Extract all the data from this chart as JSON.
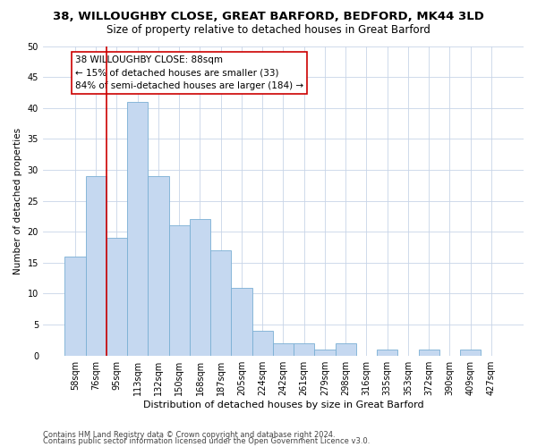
{
  "title1": "38, WILLOUGHBY CLOSE, GREAT BARFORD, BEDFORD, MK44 3LD",
  "title2": "Size of property relative to detached houses in Great Barford",
  "xlabel": "Distribution of detached houses by size in Great Barford",
  "ylabel": "Number of detached properties",
  "categories": [
    "58sqm",
    "76sqm",
    "95sqm",
    "113sqm",
    "132sqm",
    "150sqm",
    "168sqm",
    "187sqm",
    "205sqm",
    "224sqm",
    "242sqm",
    "261sqm",
    "279sqm",
    "298sqm",
    "316sqm",
    "335sqm",
    "353sqm",
    "372sqm",
    "390sqm",
    "409sqm",
    "427sqm"
  ],
  "bar_values": [
    16,
    29,
    19,
    41,
    29,
    21,
    22,
    17,
    11,
    4,
    2,
    2,
    1,
    2,
    0,
    1,
    0,
    1,
    0,
    1,
    0
  ],
  "bar_color": "#c5d8f0",
  "bar_edge_color": "#7aafd4",
  "vline_color": "#cc0000",
  "vline_x": 1.5,
  "annotation_text": "38 WILLOUGHBY CLOSE: 88sqm\n← 15% of detached houses are smaller (33)\n84% of semi-detached houses are larger (184) →",
  "annotation_box_color": "#ffffff",
  "annotation_box_edge_color": "#cc0000",
  "ylim": [
    0,
    50
  ],
  "yticks": [
    0,
    5,
    10,
    15,
    20,
    25,
    30,
    35,
    40,
    45,
    50
  ],
  "footer1": "Contains HM Land Registry data © Crown copyright and database right 2024.",
  "footer2": "Contains public sector information licensed under the Open Government Licence v3.0.",
  "bg_color": "#ffffff",
  "grid_color": "#c8d4e8",
  "title1_fontsize": 9.5,
  "title2_fontsize": 8.5,
  "xlabel_fontsize": 8,
  "ylabel_fontsize": 7.5,
  "tick_fontsize": 7,
  "annotation_fontsize": 7.5,
  "footer_fontsize": 6
}
